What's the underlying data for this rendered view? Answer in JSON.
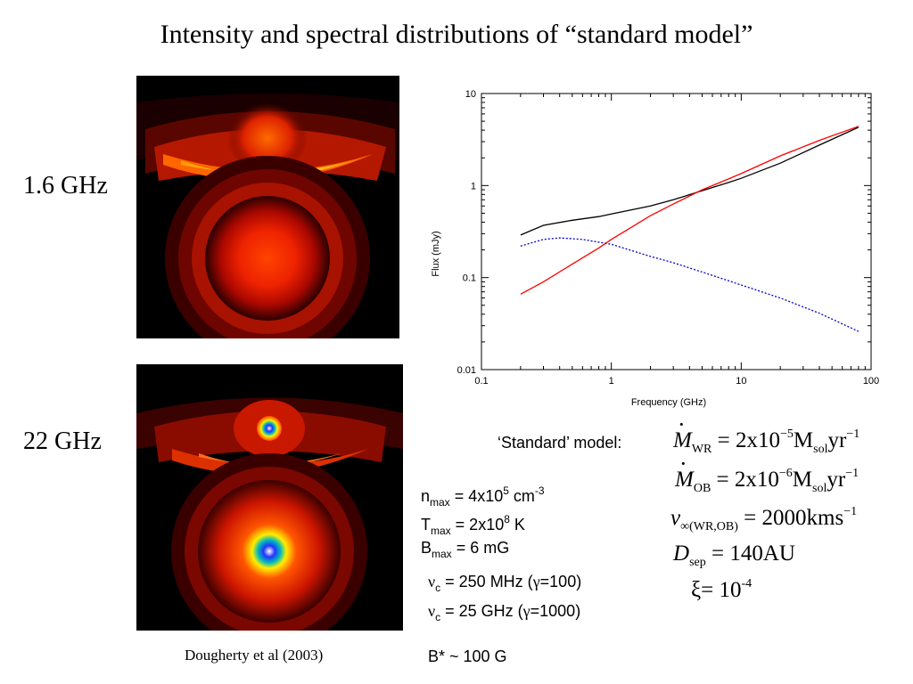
{
  "title": "Intensity and spectral distributions of “standard model”",
  "panels": {
    "top_label": "1.6 GHz",
    "bottom_label": "22 GHz"
  },
  "citation": "Dougherty et al (2003)",
  "model_label": "‘Standard’ model:",
  "equations": {
    "mdot_wr": {
      "sym": "M",
      "sub": "WR",
      "eq": " = 2x10",
      "exp": "−5",
      "unit": "M",
      "unit_sub": "sol",
      "tail": "yr",
      "tail_exp": "−1"
    },
    "mdot_ob": {
      "sym": "M",
      "sub": "OB",
      "eq": " = 2x10",
      "exp": "−6",
      "unit": "M",
      "unit_sub": "sol",
      "tail": "yr",
      "tail_exp": "−1"
    },
    "vinf": {
      "sym": "v",
      "sub": "∞(WR,OB)",
      "eq": " = 2000kms",
      "exp": "−1"
    },
    "dsep": {
      "sym": "D",
      "sub": "sep",
      "eq": " = 140AU"
    },
    "xi": {
      "text": "ξ= 10",
      "exp": "-4"
    }
  },
  "params": {
    "nmax": {
      "sym": "n",
      "sub": "max",
      "eq": " = 4x10",
      "exp": "5",
      "unit": " cm",
      "unit_exp": "-3"
    },
    "tmax": {
      "sym": "T",
      "sub": "max",
      "eq": " = 2x10",
      "exp": "8",
      "unit": " K"
    },
    "bmax": {
      "sym": "B",
      "sub": "max",
      "eq": " = 6 mG"
    },
    "nuc1": {
      "sym": "ν",
      "sub": "c",
      "eq": " = 250 MHz (",
      "gamma": "γ",
      "tail": "=100)"
    },
    "nuc2": {
      "sym": "ν",
      "sub": "c",
      "eq": " = 25 GHz (",
      "gamma": "γ",
      "tail": "=1000)"
    },
    "bstar": "B* ~ 100 G"
  },
  "chart_data": {
    "type": "line",
    "xlabel": "Frequency (GHz)",
    "ylabel": "Flux (mJy)",
    "xscale": "log",
    "yscale": "log",
    "xlim": [
      0.1,
      100
    ],
    "ylim": [
      0.01,
      10
    ],
    "xticks": [
      "0.1",
      "1",
      "10",
      "100"
    ],
    "yticks": [
      "0.01",
      "0.1",
      "1",
      "10"
    ],
    "grid": false,
    "series": [
      {
        "color": "#000000",
        "style": "solid",
        "x": [
          0.2,
          0.3,
          0.5,
          0.8,
          1,
          2,
          3,
          5,
          8,
          10,
          20,
          40,
          80
        ],
        "y": [
          0.29,
          0.37,
          0.42,
          0.46,
          0.49,
          0.6,
          0.7,
          0.88,
          1.08,
          1.2,
          1.75,
          2.75,
          4.3
        ]
      },
      {
        "color": "#ff0000",
        "style": "solid",
        "x": [
          0.2,
          0.3,
          0.5,
          0.8,
          1,
          2,
          3,
          5,
          8,
          10,
          20,
          40,
          80
        ],
        "y": [
          0.066,
          0.09,
          0.14,
          0.21,
          0.26,
          0.47,
          0.63,
          0.9,
          1.18,
          1.35,
          2.1,
          3.1,
          4.4
        ]
      },
      {
        "color": "#0000cc",
        "style": "dotted",
        "x": [
          0.2,
          0.3,
          0.4,
          0.6,
          1,
          2,
          3,
          5,
          10,
          20,
          40,
          80
        ],
        "y": [
          0.22,
          0.26,
          0.27,
          0.26,
          0.23,
          0.17,
          0.145,
          0.115,
          0.083,
          0.06,
          0.041,
          0.026
        ]
      }
    ]
  }
}
